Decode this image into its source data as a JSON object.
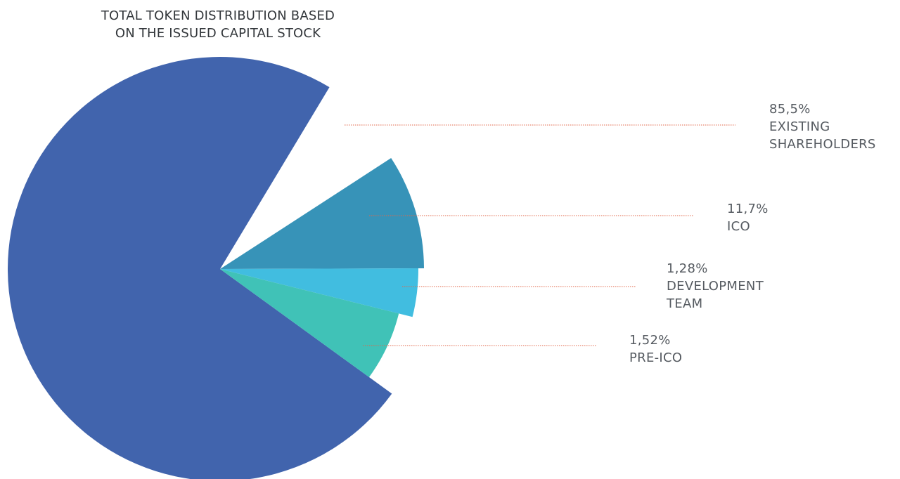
{
  "chart_data": {
    "type": "pie",
    "title": [
      "TOTAL TOKEN DISTRIBUTION BASED",
      "ON THE ISSUED CAPITAL STOCK"
    ],
    "slices": [
      {
        "key": "existing",
        "value_label": "85,5%",
        "value": 85.5,
        "label": [
          "EXISTING",
          "SHAREHOLDERS"
        ],
        "color": "#4164ad"
      },
      {
        "key": "ico",
        "value_label": "11,7%",
        "value": 11.7,
        "label": [
          "ICO"
        ],
        "color": "#3793b8"
      },
      {
        "key": "dev",
        "value_label": "1,28%",
        "value": 1.28,
        "label": [
          "DEVELOPMENT",
          "TEAM"
        ],
        "color": "#41bde0"
      },
      {
        "key": "preico",
        "value_label": "1,52%",
        "value": 1.52,
        "label": [
          "PRE-ICO"
        ],
        "color": "#40c2b7"
      }
    ],
    "leader_color": "#e0674a"
  }
}
